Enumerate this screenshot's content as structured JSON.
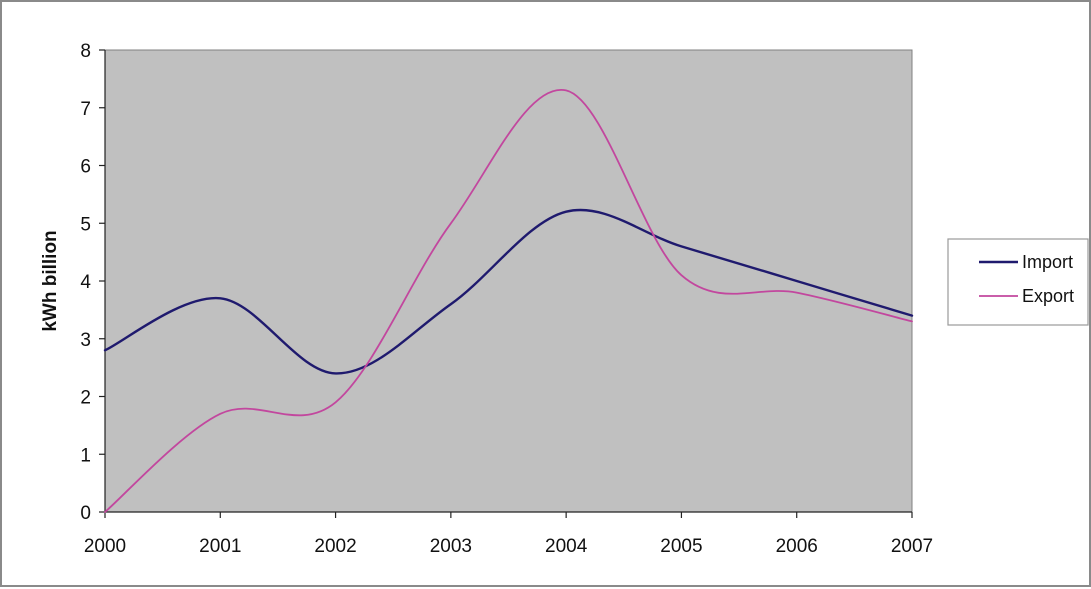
{
  "chart_data": {
    "type": "line",
    "title": "",
    "xlabel": "",
    "ylabel": "kWh billion",
    "x": [
      2000,
      2001,
      2002,
      2003,
      2004,
      2005,
      2006,
      2007
    ],
    "xlim": [
      2000,
      2007
    ],
    "ylim": [
      0,
      8
    ],
    "yticks": [
      0,
      1,
      2,
      3,
      4,
      5,
      6,
      7,
      8
    ],
    "grid": false,
    "legend": "right",
    "plot_background": "#c0c0c0",
    "series": [
      {
        "name": "Import",
        "color": "#1f1a6e",
        "values": [
          2.8,
          3.7,
          2.4,
          3.6,
          5.2,
          4.6,
          4.0,
          3.4
        ]
      },
      {
        "name": "Export",
        "color": "#c2479e",
        "values": [
          0.0,
          1.7,
          1.9,
          5.0,
          7.3,
          4.1,
          3.8,
          3.3
        ]
      }
    ]
  }
}
